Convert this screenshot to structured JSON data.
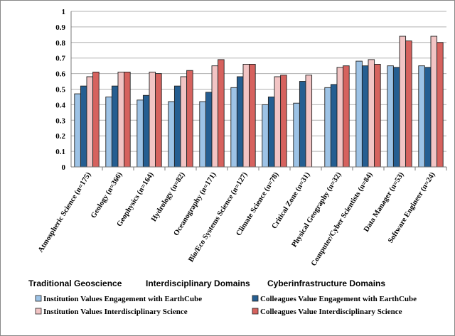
{
  "chart_data": {
    "type": "bar",
    "title": "",
    "xlabel": "",
    "ylabel": "",
    "ylim": [
      0,
      1
    ],
    "yticks": [
      "0",
      "0.1",
      "0.2",
      "0.3",
      "0.4",
      "0.5",
      "0.6",
      "0.7",
      "0.8",
      "0.9",
      "1"
    ],
    "grid": true,
    "legend_position": "bottom",
    "categories": [
      "Atmospheric Science (n=175)",
      "Geology (n=366)",
      "Geophysics (n=164)",
      "Hydrology (n=82)",
      "Oceanography (n=171)",
      "Bio/Eco Systems Science (n=127)",
      "Climate Science (n=78)",
      "Critical Zone (n=31)",
      "Physical Geography (n=32)",
      "Computer/Cyber Scientists (n=84)",
      "Data Manager (n=53)",
      "Software Engineer (n=24)"
    ],
    "category_groups": [
      {
        "label": "Traditional Geoscience"
      },
      {
        "label": "Interdisciplinary Domains"
      },
      {
        "label": "Cyberinfrastructure Domains"
      }
    ],
    "series": [
      {
        "name": "Institution Values Engagement with EarthCube",
        "color": "#9dc3e6",
        "values": [
          0.47,
          0.45,
          0.43,
          0.42,
          0.42,
          0.51,
          0.4,
          0.41,
          0.51,
          0.68,
          0.65,
          0.65
        ]
      },
      {
        "name": "Colleagues Value Engagement with EarthCube",
        "color": "#255e91",
        "values": [
          0.52,
          0.52,
          0.46,
          0.52,
          0.48,
          0.58,
          0.45,
          0.55,
          0.53,
          0.65,
          0.64,
          0.64
        ]
      },
      {
        "name": "Institution Values Interdisciplinary Science",
        "color": "#f2c4c4",
        "values": [
          0.58,
          0.61,
          0.61,
          0.58,
          0.65,
          0.66,
          0.58,
          0.59,
          0.64,
          0.69,
          0.84,
          0.84
        ]
      },
      {
        "name": "Colleagues Value Interdisciplinary Science",
        "color": "#d6625e",
        "values": [
          0.61,
          0.61,
          0.6,
          0.62,
          0.69,
          0.66,
          0.59,
          null,
          0.65,
          0.66,
          0.81,
          0.8
        ]
      }
    ]
  }
}
